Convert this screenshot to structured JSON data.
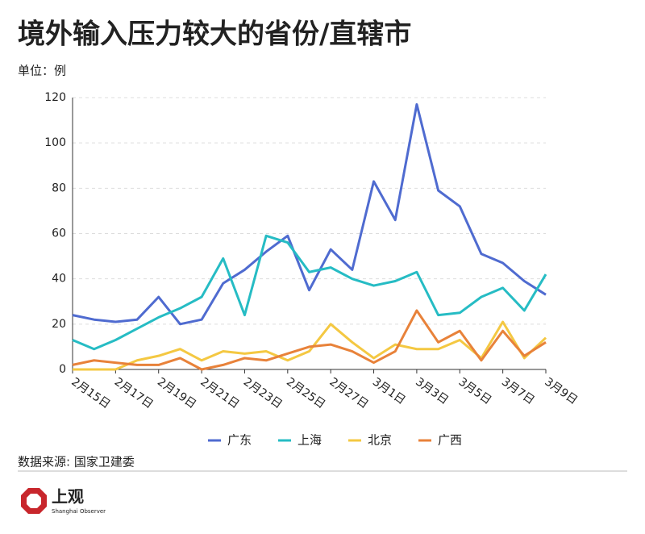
{
  "chart_data": {
    "type": "line",
    "title": "境外输入压力较大的省份/直辖市",
    "unit": "单位：例",
    "source": "数据来源: 国家卫建委",
    "brand": "上观",
    "brand_en": "Shanghai Observer",
    "categories": [
      "2月15日",
      null,
      "2月17日",
      null,
      "2月19日",
      null,
      "2月21日",
      null,
      "2月23日",
      null,
      "2月25日",
      null,
      "2月27日",
      null,
      "3月1日",
      null,
      "3月3日",
      null,
      "3月5日",
      null,
      "3月7日",
      null,
      "3月9日"
    ],
    "series": [
      {
        "name": "广东",
        "color": "#4f6bd0",
        "values": [
          24,
          22,
          21,
          22,
          32,
          20,
          22,
          38,
          44,
          52,
          59,
          35,
          53,
          44,
          83,
          66,
          117,
          79,
          72,
          51,
          47,
          39,
          33
        ]
      },
      {
        "name": "上海",
        "color": "#26bcc4",
        "values": [
          13,
          9,
          13,
          18,
          23,
          27,
          32,
          49,
          24,
          59,
          56,
          43,
          45,
          40,
          37,
          39,
          43,
          24,
          25,
          32,
          36,
          26,
          42
        ]
      },
      {
        "name": "北京",
        "color": "#f4c842",
        "values": [
          0,
          0,
          0,
          4,
          6,
          9,
          4,
          8,
          7,
          8,
          4,
          8,
          20,
          12,
          5,
          11,
          9,
          9,
          13,
          5,
          21,
          5,
          14
        ]
      },
      {
        "name": "广西",
        "color": "#e8823a",
        "values": [
          2,
          4,
          3,
          2,
          2,
          5,
          0,
          2,
          5,
          4,
          7,
          10,
          11,
          8,
          3,
          8,
          26,
          12,
          17,
          4,
          17,
          6,
          12
        ]
      }
    ],
    "ylim": [
      0,
      120
    ],
    "yticks": [
      0,
      20,
      40,
      60,
      80,
      100,
      120
    ],
    "grid": true,
    "legend": "bottom"
  }
}
